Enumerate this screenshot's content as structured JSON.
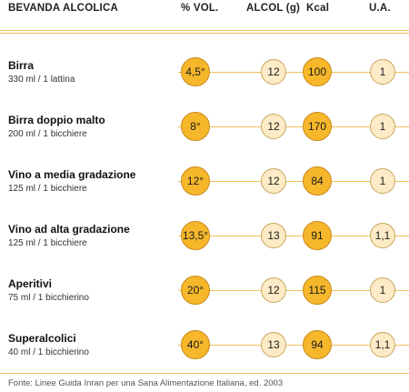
{
  "header": {
    "beverage": "BEVANDA ALCOLICA",
    "vol": "% VOL.",
    "alcohol": "ALCOL (g)",
    "kcal": "Kcal",
    "ua": "U.A."
  },
  "rows": [
    {
      "name": "Birra",
      "quantity": "330 ml / 1 lattina",
      "vol": "4,5°",
      "alcohol": "12",
      "kcal": "100",
      "ua": "1"
    },
    {
      "name": "Birra doppio malto",
      "quantity": "200 ml / 1 bicchiere",
      "vol": "8°",
      "alcohol": "12",
      "kcal": "170",
      "ua": "1"
    },
    {
      "name": "Vino a media gradazione",
      "quantity": "125 ml / 1 bicchiere",
      "vol": "12°",
      "alcohol": "12",
      "kcal": "84",
      "ua": "1"
    },
    {
      "name": "Vino ad alta gradazione",
      "quantity": "125 ml / 1 bicchiere",
      "vol": "13,5°",
      "alcohol": "13",
      "kcal": "91",
      "ua": "1,1"
    },
    {
      "name": "Aperitivi",
      "quantity": "75 ml / 1 bicchierino",
      "vol": "20°",
      "alcohol": "12",
      "kcal": "115",
      "ua": "1"
    },
    {
      "name": "Superalcolici",
      "quantity": "40 ml / 1 bicchierino",
      "vol": "40°",
      "alcohol": "13",
      "kcal": "94",
      "ua": "1,1"
    }
  ],
  "source": "Fonte: Linee Guida Inran per una Sana Alimentazione Italiana, ed. 2003",
  "colors": {
    "accent": "#f6b72b",
    "accent_light": "#fcebc6",
    "rule": "#f0c15a"
  }
}
